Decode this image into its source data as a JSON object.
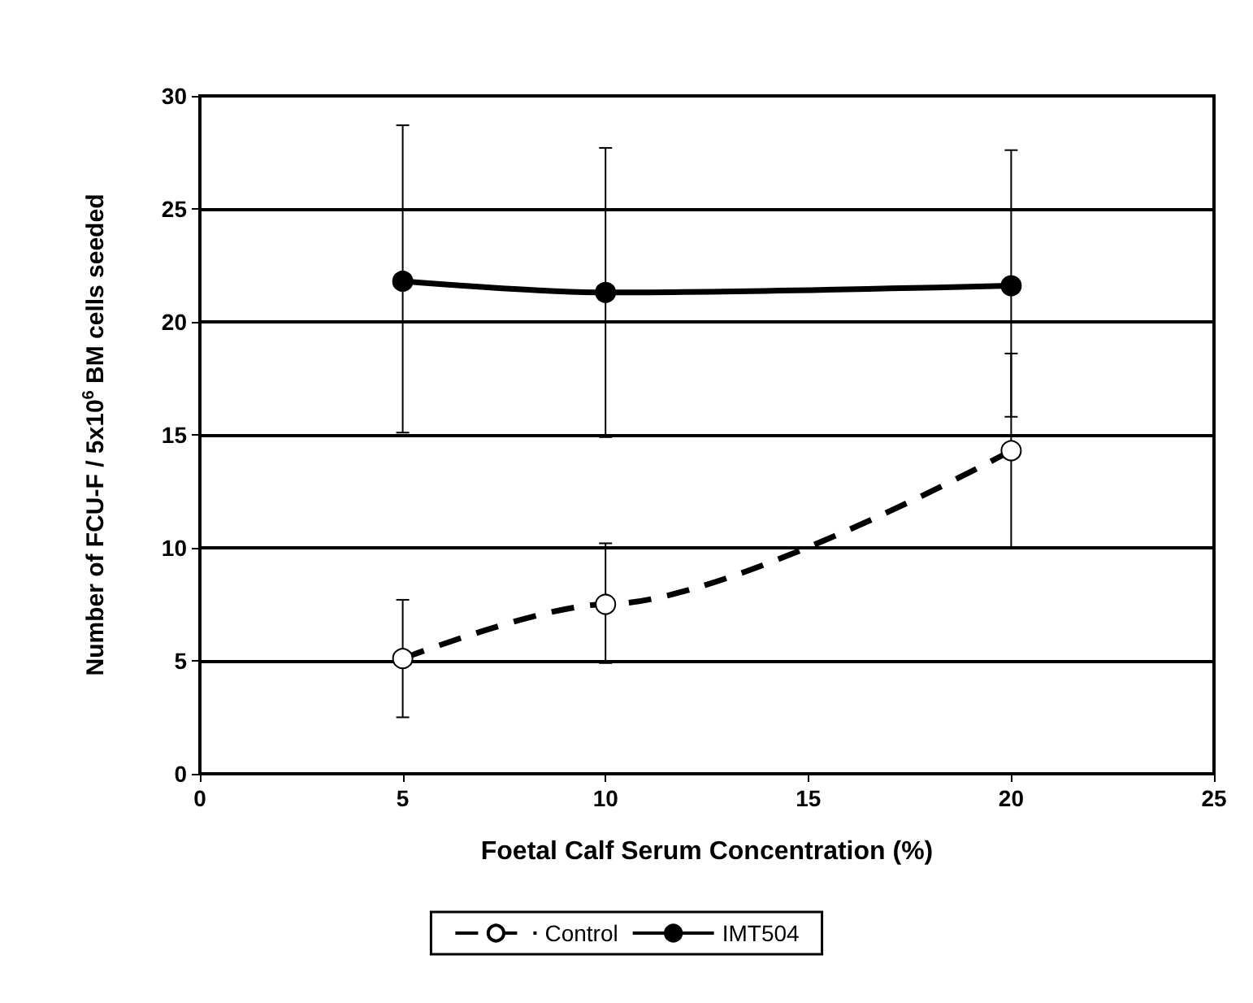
{
  "chart_data": {
    "type": "line",
    "xlabel": "Foetal Calf Serum Concentration (%)",
    "ylabel": "Number of FCU-F / 5x10$^{6}$ BM cells seeded",
    "x": [
      5,
      10,
      20
    ],
    "series": [
      {
        "name": "Control",
        "color": "#000000",
        "values": [
          5.1,
          7.5,
          14.3
        ],
        "errors": [
          [
            2.5,
            7.7
          ],
          [
            4.9,
            10.2
          ],
          [
            10,
            18.6
          ]
        ],
        "line_style": "dashed",
        "marker": "circle"
      },
      {
        "name": "IMT504",
        "color": "#000000",
        "values": [
          21.8,
          21.3,
          21.6
        ],
        "errors": [
          [
            15.1,
            28.7
          ],
          [
            14.9,
            27.7
          ],
          [
            15.8,
            27.6
          ]
        ],
        "line_style": "solid",
        "marker": "circle"
      }
    ],
    "xlim": [
      0,
      25
    ],
    "xticks": [
      0,
      5,
      10,
      15,
      20,
      25
    ],
    "ylim": [
      0,
      30
    ],
    "yticks": [
      0,
      5,
      10,
      15,
      20,
      25,
      30
    ],
    "grid": "y",
    "legend": "bottom"
  }
}
